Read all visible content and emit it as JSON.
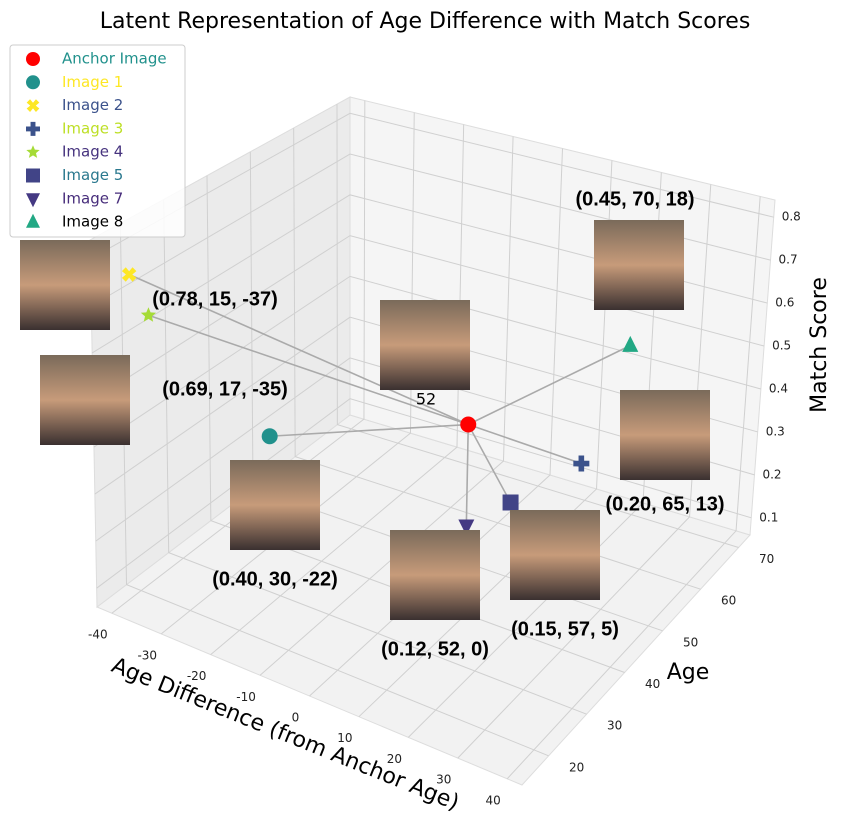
{
  "chart_data": {
    "type": "scatter3d",
    "title": "Latent Representation of Age Difference with Match Scores",
    "x_label": "Age Difference (from Anchor Age)",
    "y_label": "Age",
    "z_label": "Match Score",
    "xlim": [
      -43,
      43
    ],
    "ylim": [
      13,
      73
    ],
    "zlim": [
      0.06,
      0.84
    ],
    "xticks": [
      -40,
      -30,
      -20,
      -10,
      0,
      10,
      20,
      30,
      40
    ],
    "yticks": [
      20,
      30,
      40,
      50,
      60,
      70
    ],
    "zticks": [
      0.1,
      0.2,
      0.3,
      0.4,
      0.5,
      0.6,
      0.7,
      0.8
    ],
    "grid": true,
    "legend": "upper left",
    "series": [
      {
        "name": "Anchor Image",
        "color": "#ff0000",
        "label_color": "#21918c",
        "marker": "circle",
        "x": [
          0
        ],
        "y": [
          52
        ],
        "z": [
          0.35
        ],
        "annotation": "52"
      },
      {
        "name": "Image 1",
        "color": "#21918c",
        "label_color": "#fde725",
        "marker": "circle",
        "x": [
          -22
        ],
        "y": [
          30
        ],
        "z": [
          0.4
        ],
        "annotation": "(0.40, 30, -22)"
      },
      {
        "name": "Image 2",
        "color": "#fde725",
        "label_color": "#3b528b",
        "marker": "x",
        "x": [
          -37
        ],
        "y": [
          15
        ],
        "z": [
          0.78
        ],
        "annotation": "(0.78, 15, -37)"
      },
      {
        "name": "Image 3",
        "color": "#3b528b",
        "label_color": "#bddf26",
        "marker": "plus",
        "x": [
          13
        ],
        "y": [
          65
        ],
        "z": [
          0.2
        ],
        "annotation": "(0.20, 65, 13)"
      },
      {
        "name": "Image 4",
        "color": "#a5db36",
        "label_color": "#46337e",
        "marker": "star",
        "x": [
          -35
        ],
        "y": [
          17
        ],
        "z": [
          0.69
        ],
        "annotation": "(0.69, 17, -35)"
      },
      {
        "name": "Image 5",
        "color": "#414487",
        "label_color": "#2a788e",
        "marker": "square",
        "x": [
          5
        ],
        "y": [
          57
        ],
        "z": [
          0.15
        ],
        "annotation": "(0.15, 57, 5)"
      },
      {
        "name": "Image 7",
        "color": "#443983",
        "label_color": "#472d7b",
        "marker": "tri-down",
        "x": [
          0
        ],
        "y": [
          52
        ],
        "z": [
          0.12
        ],
        "annotation": "(0.12, 52, 0)"
      },
      {
        "name": "Image 8",
        "color": "#22a884",
        "label_color": "#000000",
        "marker": "tri-up",
        "x": [
          18
        ],
        "y": [
          70
        ],
        "z": [
          0.45
        ],
        "annotation": "(0.45, 70, 18)"
      }
    ]
  }
}
